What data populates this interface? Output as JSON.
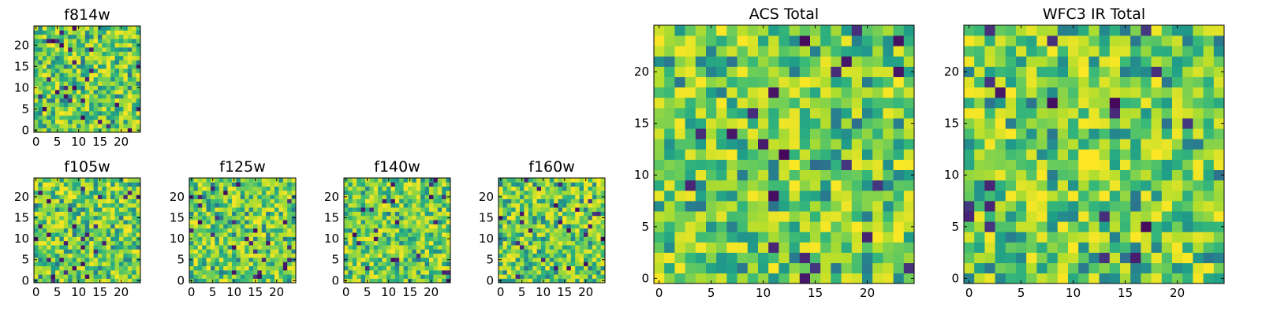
{
  "chart_data": [
    {
      "type": "heatmap",
      "title": "f814w",
      "colormap": "viridis",
      "shape": [
        25,
        25
      ],
      "xlim": [
        0,
        24
      ],
      "ylim": [
        0,
        24
      ],
      "xticks": [
        0,
        5,
        10,
        15,
        20
      ],
      "yticks": [
        0,
        5,
        10,
        15,
        20
      ],
      "seed": 11,
      "hot_spots": []
    },
    {
      "type": "heatmap",
      "title": "f105w",
      "colormap": "viridis",
      "shape": [
        25,
        25
      ],
      "xlim": [
        0,
        24
      ],
      "ylim": [
        0,
        24
      ],
      "xticks": [
        0,
        5,
        10,
        15,
        20
      ],
      "yticks": [
        0,
        5,
        10,
        15,
        20
      ],
      "seed": 23,
      "hot_spots": []
    },
    {
      "type": "heatmap",
      "title": "f125w",
      "colormap": "viridis",
      "shape": [
        25,
        25
      ],
      "xlim": [
        0,
        24
      ],
      "ylim": [
        0,
        24
      ],
      "xticks": [
        0,
        5,
        10,
        15,
        20
      ],
      "yticks": [
        0,
        5,
        10,
        15,
        20
      ],
      "seed": 37,
      "hot_spots": []
    },
    {
      "type": "heatmap",
      "title": "f140w",
      "colormap": "viridis",
      "shape": [
        25,
        25
      ],
      "xlim": [
        0,
        24
      ],
      "ylim": [
        0,
        24
      ],
      "xticks": [
        0,
        5,
        10,
        15,
        20
      ],
      "yticks": [
        0,
        5,
        10,
        15,
        20
      ],
      "seed": 41,
      "hot_spots": []
    },
    {
      "type": "heatmap",
      "title": "f160w",
      "colormap": "viridis",
      "shape": [
        25,
        25
      ],
      "xlim": [
        0,
        24
      ],
      "ylim": [
        0,
        24
      ],
      "xticks": [
        0,
        5,
        10,
        15,
        20
      ],
      "yticks": [
        0,
        5,
        10,
        15,
        20
      ],
      "seed": 53,
      "hot_spots": []
    },
    {
      "type": "heatmap",
      "title": "ACS Total",
      "colormap": "viridis",
      "shape": [
        25,
        25
      ],
      "xlim": [
        0,
        24
      ],
      "ylim": [
        0,
        24
      ],
      "xticks": [
        0,
        5,
        10,
        15,
        20
      ],
      "yticks": [
        0,
        5,
        10,
        15,
        20
      ],
      "seed": 67,
      "hot_spots": []
    },
    {
      "type": "heatmap",
      "title": "WFC3 IR Total",
      "colormap": "viridis",
      "shape": [
        25,
        25
      ],
      "xlim": [
        0,
        24
      ],
      "ylim": [
        0,
        24
      ],
      "xticks": [
        0,
        5,
        10,
        15,
        20
      ],
      "yticks": [
        0,
        5,
        10,
        15,
        20
      ],
      "seed": 79,
      "hot_spots": [
        [
          11,
          11
        ],
        [
          11,
          12
        ],
        [
          12,
          11
        ],
        [
          12,
          12
        ]
      ]
    }
  ]
}
